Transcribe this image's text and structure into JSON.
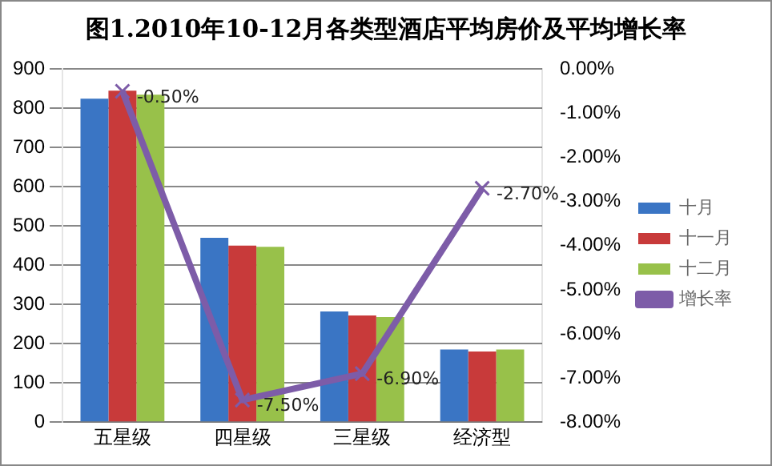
{
  "chart_data": {
    "type": "bar",
    "title": "图1.2010年10-12月各类型酒店平均房价及平均增长率",
    "categories": [
      "五星级",
      "四星级",
      "三星级",
      "经济型"
    ],
    "series": [
      {
        "name": "十月",
        "color": "#3a75c4",
        "values": [
          825,
          470,
          282,
          185
        ]
      },
      {
        "name": "十一月",
        "color": "#c83a3a",
        "values": [
          845,
          450,
          272,
          180
        ]
      },
      {
        "name": "十二月",
        "color": "#98c14a",
        "values": [
          835,
          447,
          268,
          185
        ]
      },
      {
        "name": "增长率",
        "type": "line",
        "axis": "y2",
        "color": "#7d5ca8",
        "marker": "cross",
        "values": [
          -0.5,
          -7.5,
          -6.9,
          -2.7
        ],
        "value_labels": [
          "-0.50%",
          "-7.50%",
          "-6.90%",
          "-2.70%"
        ]
      }
    ],
    "ylim": [
      0,
      900
    ],
    "yticks": [
      0,
      100,
      200,
      300,
      400,
      500,
      600,
      700,
      800,
      900
    ],
    "y2lim": [
      -8,
      0
    ],
    "y2ticks": [
      {
        "value": 0,
        "label": "0.00%"
      },
      {
        "value": -1,
        "label": "-1.00%"
      },
      {
        "value": -2,
        "label": "-2.00%"
      },
      {
        "value": -3,
        "label": "-3.00%"
      },
      {
        "value": -4,
        "label": "-4.00%"
      },
      {
        "value": -5,
        "label": "-5.00%"
      },
      {
        "value": -6,
        "label": "-6.00%"
      },
      {
        "value": -7,
        "label": "-7.00%"
      },
      {
        "value": -8,
        "label": "-8.00%"
      }
    ],
    "grid": "y",
    "legend": "right"
  }
}
